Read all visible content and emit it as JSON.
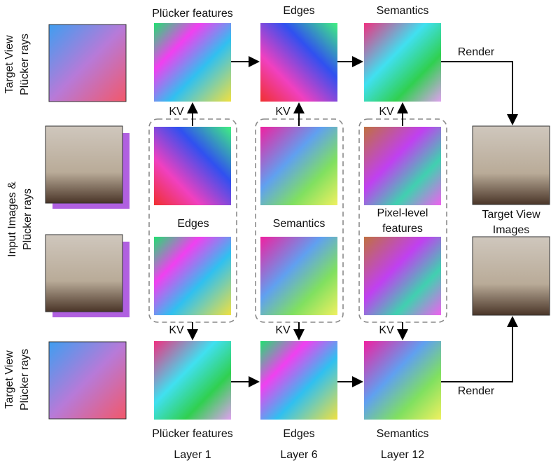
{
  "row_labels": [
    [
      "Target View",
      "Plücker rays"
    ],
    [
      "Input Images &",
      "Plücker rays"
    ],
    [
      "Target View",
      "Plücker rays"
    ]
  ],
  "top_row": {
    "labels": [
      "Plücker features",
      "Edges",
      "Semantics"
    ],
    "render": "Render"
  },
  "kv_labels": [
    "KV",
    "KV",
    "KV",
    "KV",
    "KV",
    "KV"
  ],
  "middle_labels": [
    [
      "Edges"
    ],
    [
      "Semantics"
    ],
    [
      "Pixel-level",
      "features"
    ]
  ],
  "output_label": [
    "Target View",
    "Images"
  ],
  "bottom_row": {
    "labels": [
      "Plücker features",
      "Edges",
      "Semantics"
    ],
    "render": "Render"
  },
  "layers": [
    "Layer 1",
    "Layer 6",
    "Layer 12"
  ]
}
